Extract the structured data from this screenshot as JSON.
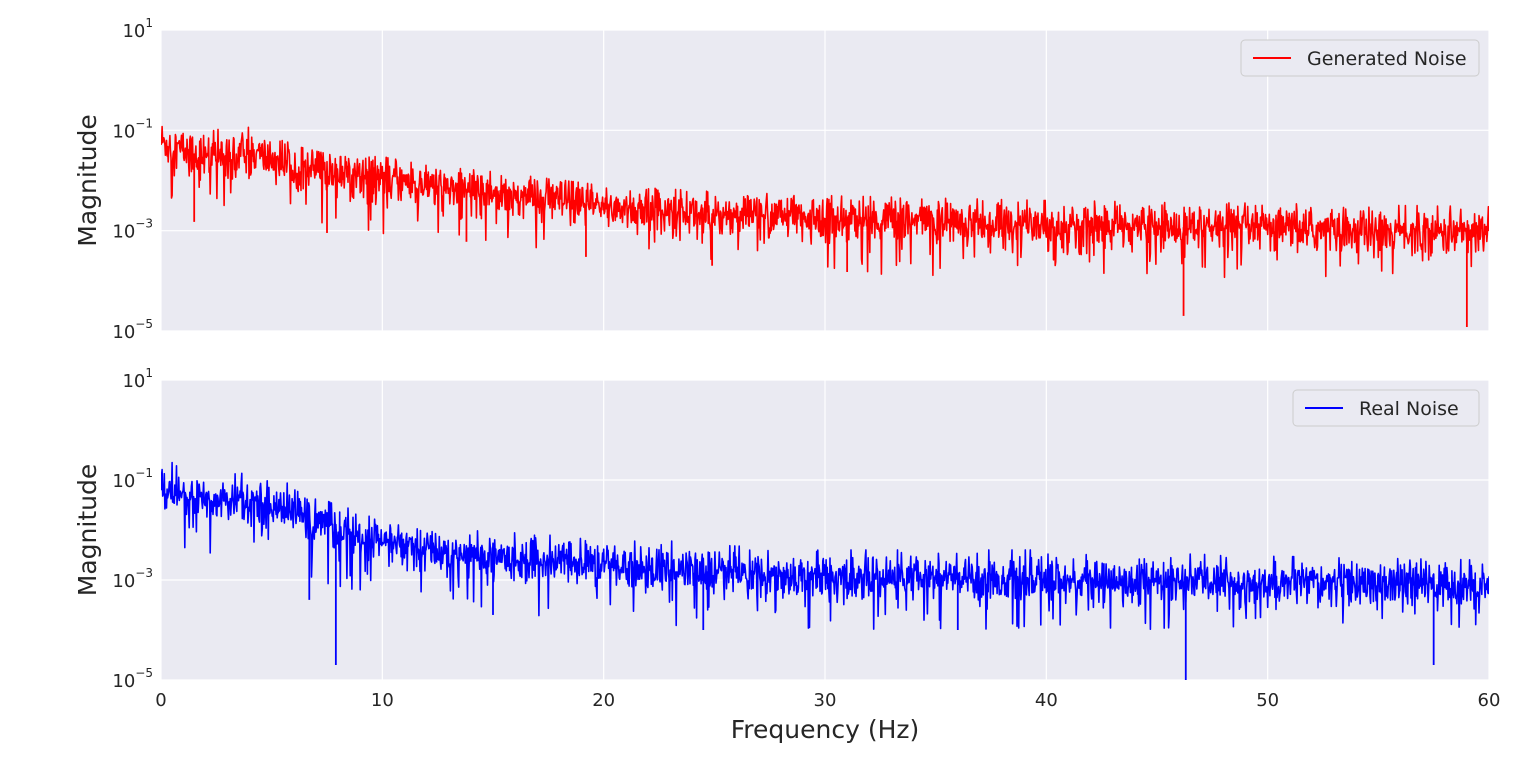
{
  "chart_data": [
    {
      "type": "line",
      "ylabel": "Magnitude",
      "yscale": "log",
      "ylim": [
        1e-05,
        10
      ],
      "xlim": [
        0,
        60
      ],
      "grid": true,
      "legend_placement": "top-right",
      "series": [
        {
          "name": "Generated Noise",
          "color": "#ff0000",
          "envelope": {
            "x": [
              0,
              1,
              2,
              4,
              6,
              8,
              10,
              12,
              15,
              20,
              25,
              30,
              40,
              50,
              60
            ],
            "median": [
              0.06,
              0.04,
              0.03,
              0.035,
              0.02,
              0.015,
              0.012,
              0.008,
              0.006,
              0.003,
              0.0022,
              0.0018,
              0.0013,
              0.0011,
              0.0009
            ],
            "upper": [
              0.18,
              0.12,
              0.09,
              0.15,
              0.05,
              0.03,
              0.03,
              0.02,
              0.015,
              0.008,
              0.006,
              0.005,
              0.004,
              0.0035,
              0.003
            ],
            "lower": [
              0.002,
              0.002,
              0.003,
              0.003,
              0.002,
              0.001,
              0.0008,
              0.0007,
              0.0005,
              0.0003,
              0.0002,
              0.00015,
              0.0001,
              0.0001,
              8e-05
            ]
          },
          "dips": [
            [
              1.5,
              0.0015
            ],
            [
              7.5,
              0.0009
            ],
            [
              13.8,
              0.0006
            ],
            [
              19.2,
              0.0003
            ],
            [
              24.9,
              0.0002
            ],
            [
              31.0,
              0.00015
            ],
            [
              46.2,
              2e-05
            ],
            [
              59.0,
              1.2e-05
            ]
          ]
        }
      ]
    },
    {
      "type": "line",
      "xlabel": "Frequency (Hz)",
      "ylabel": "Magnitude",
      "yscale": "log",
      "ylim": [
        1e-05,
        10
      ],
      "xlim": [
        0,
        60
      ],
      "xticks": [
        0,
        10,
        20,
        30,
        40,
        50,
        60
      ],
      "grid": true,
      "legend_placement": "top-right",
      "series": [
        {
          "name": "Real Noise",
          "color": "#0000ff",
          "envelope": {
            "x": [
              0,
              1,
              2,
              4,
              6,
              8,
              10,
              12,
              15,
              20,
              25,
              30,
              40,
              50,
              60
            ],
            "median": [
              0.08,
              0.05,
              0.04,
              0.04,
              0.025,
              0.01,
              0.006,
              0.004,
              0.003,
              0.002,
              0.0015,
              0.0012,
              0.001,
              0.0009,
              0.0008
            ],
            "upper": [
              0.25,
              0.2,
              0.12,
              0.14,
              0.08,
              0.03,
              0.02,
              0.012,
              0.009,
              0.008,
              0.005,
              0.004,
              0.004,
              0.003,
              0.0025
            ],
            "lower": [
              0.005,
              0.004,
              0.003,
              0.002,
              0.001,
              0.0005,
              0.0004,
              0.0003,
              0.0002,
              0.00015,
              0.0001,
              0.0001,
              0.0001,
              0.0001,
              0.0001
            ]
          },
          "dips": [
            [
              6.7,
              0.0004
            ],
            [
              7.9,
              2e-05
            ],
            [
              15.0,
              0.0002
            ],
            [
              24.5,
              0.0001
            ],
            [
              36.0,
              0.0001
            ],
            [
              46.3,
              1e-05
            ],
            [
              57.5,
              2e-05
            ]
          ]
        }
      ]
    }
  ]
}
